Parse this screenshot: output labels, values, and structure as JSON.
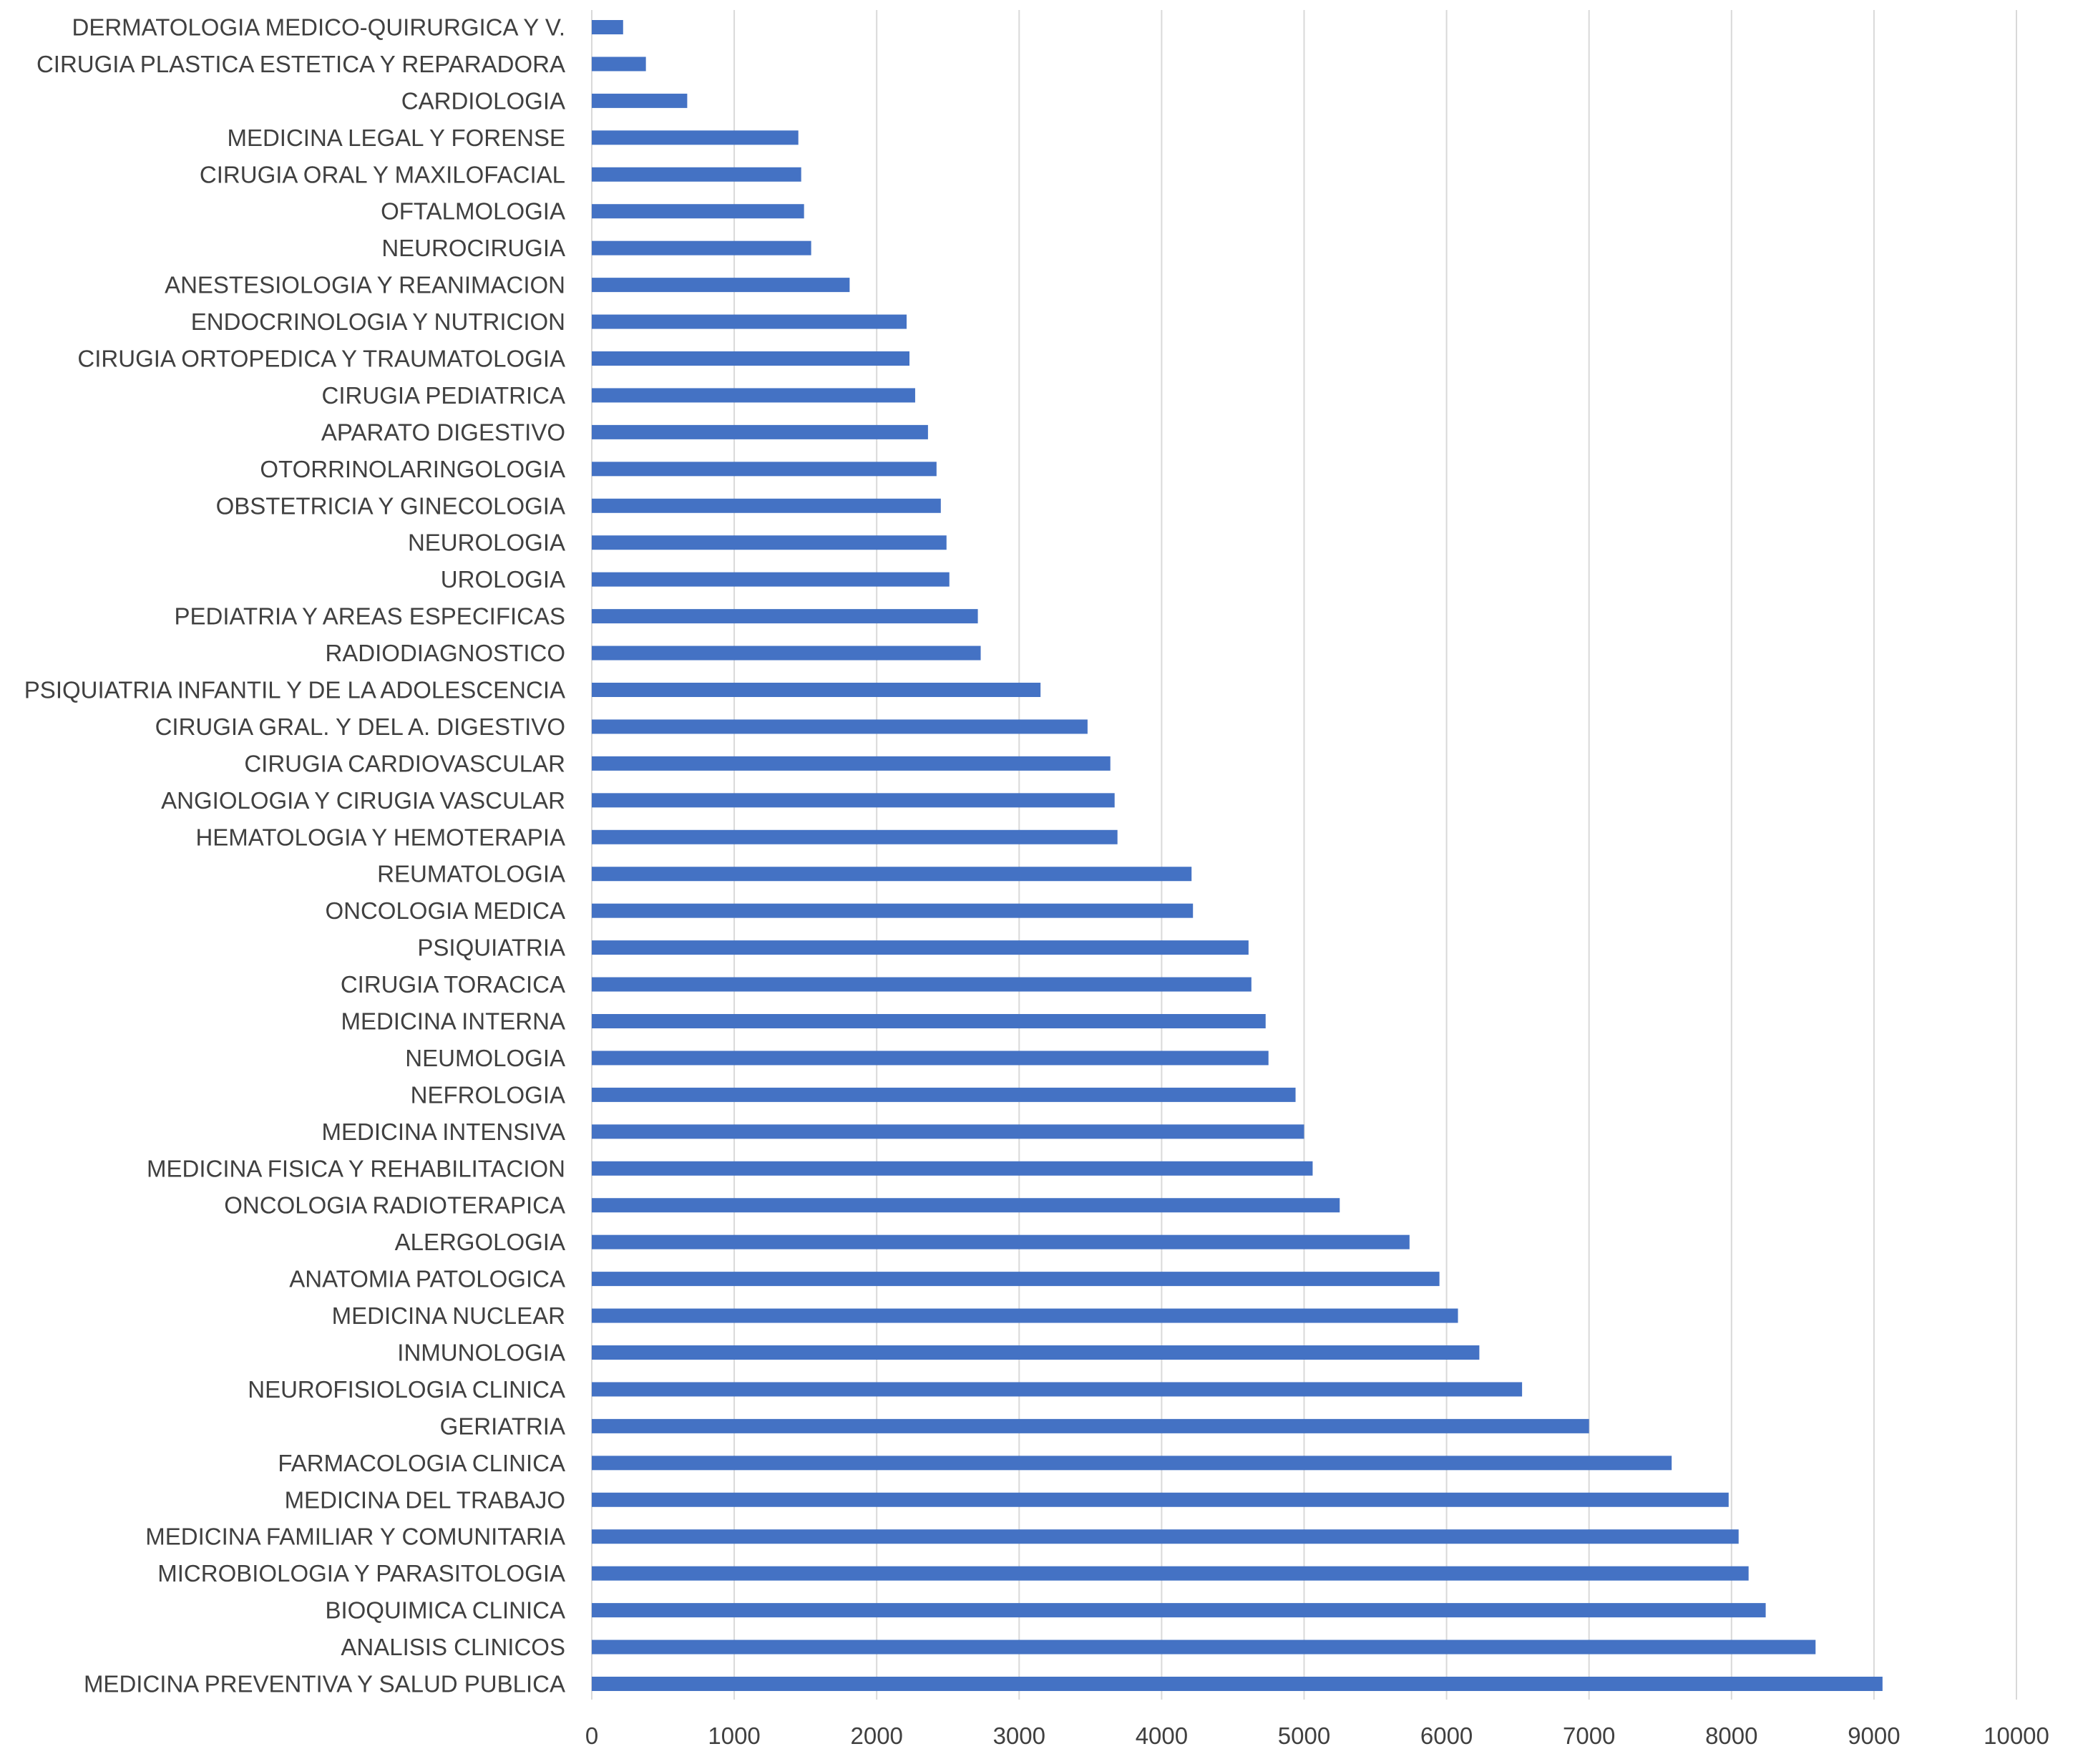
{
  "chart_data": {
    "type": "bar",
    "orientation": "horizontal",
    "title": "",
    "xlabel": "",
    "ylabel": "",
    "xlim": [
      0,
      10000
    ],
    "xticks": [
      0,
      1000,
      2000,
      3000,
      4000,
      5000,
      6000,
      7000,
      8000,
      9000,
      10000
    ],
    "grid": true,
    "legend": "none",
    "bar_color": "#4472c4",
    "categories": [
      "DERMATOLOGIA MEDICO-QUIRURGICA Y V.",
      "CIRUGIA PLASTICA ESTETICA Y REPARADORA",
      "CARDIOLOGIA",
      "MEDICINA LEGAL Y FORENSE",
      "CIRUGIA ORAL Y MAXILOFACIAL",
      "OFTALMOLOGIA",
      "NEUROCIRUGIA",
      "ANESTESIOLOGIA Y REANIMACION",
      "ENDOCRINOLOGIA Y NUTRICION",
      "CIRUGIA ORTOPEDICA Y TRAUMATOLOGIA",
      "CIRUGIA PEDIATRICA",
      "APARATO DIGESTIVO",
      "OTORRINOLARINGOLOGIA",
      "OBSTETRICIA Y GINECOLOGIA",
      "NEUROLOGIA",
      "UROLOGIA",
      "PEDIATRIA Y AREAS ESPECIFICAS",
      "RADIODIAGNOSTICO",
      "PSIQUIATRIA INFANTIL Y DE LA ADOLESCENCIA",
      "CIRUGIA GRAL. Y DEL A. DIGESTIVO",
      "CIRUGIA CARDIOVASCULAR",
      "ANGIOLOGIA Y CIRUGIA VASCULAR",
      "HEMATOLOGIA Y HEMOTERAPIA",
      "REUMATOLOGIA",
      "ONCOLOGIA MEDICA",
      "PSIQUIATRIA",
      "CIRUGIA TORACICA",
      "MEDICINA INTERNA",
      "NEUMOLOGIA",
      "NEFROLOGIA",
      "MEDICINA INTENSIVA",
      "MEDICINA FISICA Y REHABILITACION",
      "ONCOLOGIA RADIOTERAPICA",
      "ALERGOLOGIA",
      "ANATOMIA PATOLOGICA",
      "MEDICINA NUCLEAR",
      "INMUNOLOGIA",
      "NEUROFISIOLOGIA CLINICA",
      "GERIATRIA",
      "FARMACOLOGIA CLINICA",
      "MEDICINA DEL TRABAJO",
      "MEDICINA FAMILIAR Y COMUNITARIA",
      "MICROBIOLOGIA Y PARASITOLOGIA",
      "BIOQUIMICA CLINICA",
      "ANALISIS CLINICOS",
      "MEDICINA PREVENTIVA Y SALUD PUBLICA"
    ],
    "values": [
      220,
      380,
      670,
      1450,
      1470,
      1490,
      1540,
      1810,
      2210,
      2230,
      2270,
      2360,
      2420,
      2450,
      2490,
      2510,
      2710,
      2730,
      3150,
      3480,
      3640,
      3670,
      3690,
      4210,
      4220,
      4610,
      4630,
      4730,
      4750,
      4940,
      5000,
      5060,
      5250,
      5740,
      5950,
      6080,
      6230,
      6530,
      7000,
      7580,
      7980,
      8050,
      8120,
      8240,
      8590,
      9060
    ]
  }
}
